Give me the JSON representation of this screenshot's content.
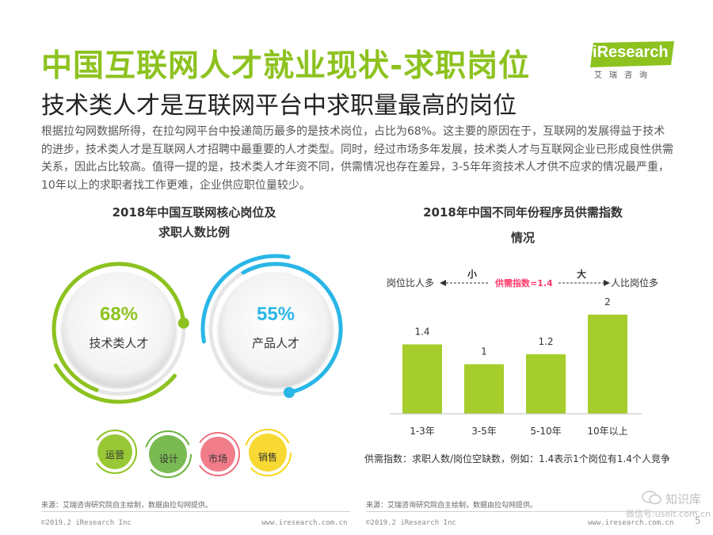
{
  "header": {
    "title": "中国互联网人才就业现状-求职岗位",
    "subtitle": "技术类人才是互联网平台中求职量最高的岗位"
  },
  "logo": {
    "word_i": "i",
    "word_rest": "Research",
    "sub": "艾瑞咨询"
  },
  "paragraph": "根据拉勾网数据所得，在拉勾网平台中投递简历最多的是技术岗位，占比为68%。这主要的原因在于，互联网的发展得益于技术的进步，技术类人才是互联网人才招聘中最重要的人才类型。同时，经过市场多年发展，技术类人才与互联网企业已形成良性供需关系，因此占比较高。值得一提的是，技术类人才年资不同，供需情况也存在差异，3-5年年资技术人才供不应求的情况最严重，10年以上的求职者找工作更难，企业供应职位量较少。",
  "left_panel": {
    "title_line1": "2018年中国互联网核心岗位及",
    "title_line2": "求职人数比例",
    "source": "来源：艾瑞咨询研究院自主绘制，数据由拉勾网提供。",
    "copyright": "©2019.2 iResearch Inc",
    "url": "www.iresearch.com.cn"
  },
  "right_panel": {
    "title_line1": "2018年中国不同年份程序员供需指数",
    "title_line2": "情况",
    "small_label": "小",
    "big_label": "大",
    "left_note": "岗位比人多",
    "right_note": "人比岗位多",
    "center_note": "供需指数=1.4",
    "footnote": "供需指数：求职人数/岗位空缺数，例如：1.4表示1个岗位有1.4个人竞争",
    "source": "来源：艾瑞咨询研究院自主绘制，数据由拉勾网提供。",
    "copyright": "©2019.2 iResearch Inc",
    "url": "www.iresearch.com.cn"
  },
  "watermark": {
    "brand": "知识库",
    "account": "微信号:useit.com.cn"
  },
  "page_number": "5",
  "colors": {
    "green": "#8dc21f",
    "bar_green": "#a5cd2b",
    "blue": "#29b6e6",
    "red": "#ff3b6b",
    "bubble_green": "#6cb33f",
    "bubble_pink": "#f06f7e",
    "bubble_yellow": "#f7d51d"
  },
  "chart_data": [
    {
      "type": "pie",
      "title": "2018年中国互联网核心岗位及求职人数比例",
      "rings": [
        {
          "label": "技术类人才",
          "value": 68,
          "display": "68%",
          "color": "#8dc21f"
        },
        {
          "label": "产品人才",
          "value": 55,
          "display": "55%",
          "color": "#29b6e6"
        }
      ],
      "bubbles": [
        {
          "label": "运营",
          "color": "#8dc21f"
        },
        {
          "label": "设计",
          "color": "#6cb33f"
        },
        {
          "label": "市场",
          "color": "#f06f7e"
        },
        {
          "label": "销售",
          "color": "#f7d51d"
        }
      ]
    },
    {
      "type": "bar",
      "title": "2018年中国不同年份程序员供需指数情况",
      "categories": [
        "1-3年",
        "3-5年",
        "5-10年",
        "10年以上"
      ],
      "values": [
        1.4,
        1,
        1.2,
        2
      ],
      "value_labels": [
        "1.4",
        "1",
        "1.2",
        "2"
      ],
      "xlabel": "",
      "ylabel": "",
      "ylim": [
        0,
        2
      ],
      "grid": false
    }
  ]
}
